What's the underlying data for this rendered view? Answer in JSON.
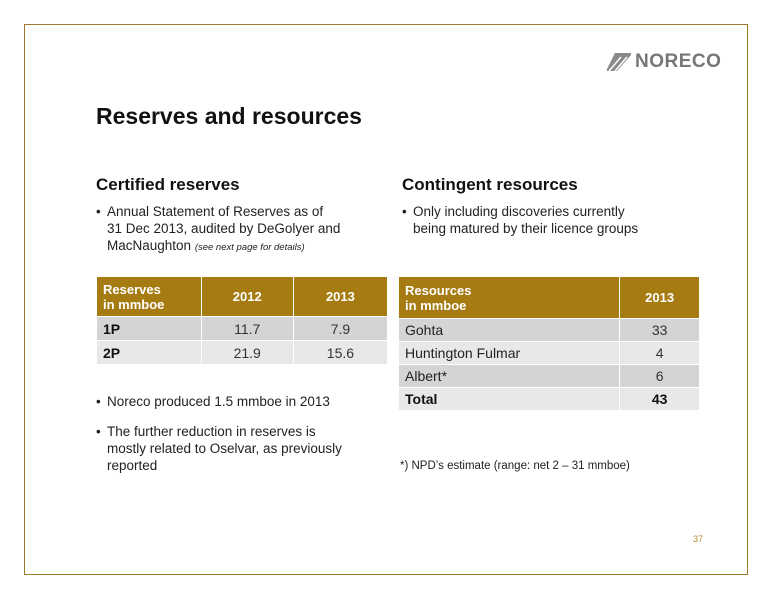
{
  "logo": {
    "text": "NORECO",
    "icon": "noreco-stripes-logo"
  },
  "title": "Reserves and resources",
  "left": {
    "heading": "Certified reserves",
    "bullet1": {
      "line1": "Annual Statement of Reserves as of",
      "line2": "31 Dec 2013, audited by DeGolyer and",
      "line3": "MacNaughton ",
      "note": "(see next page for details)"
    },
    "table": {
      "header": {
        "col0_line1": "Reserves",
        "col0_line2": "in mmboe",
        "col1": "2012",
        "col2": "2013"
      },
      "rows": [
        {
          "label": "1P",
          "v2012": "11.7",
          "v2013": "7.9"
        },
        {
          "label": "2P",
          "v2012": "21.9",
          "v2013": "15.6"
        }
      ]
    },
    "bullet2": "Noreco produced 1.5 mmboe in 2013",
    "bullet3": {
      "line1": "The further reduction in reserves is",
      "line2": "mostly related to Oselvar, as previously",
      "line3": "reported"
    }
  },
  "right": {
    "heading": "Contingent resources",
    "bullet1": {
      "line1": "Only including discoveries currently",
      "line2": "being matured by their licence groups"
    },
    "table": {
      "header": {
        "col0_line1": "Resources",
        "col0_line2": "in mmboe",
        "col1": "2013"
      },
      "rows": [
        {
          "label": "Gohta",
          "value": "33"
        },
        {
          "label": "Huntington Fulmar",
          "value": "4"
        },
        {
          "label": "Albert*",
          "value": "6"
        }
      ],
      "total": {
        "label": "Total",
        "value": "43"
      }
    },
    "footnote": "*) NPD’s estimate (range: net 2 – 31 mmboe)"
  },
  "page_number": "37",
  "colors": {
    "accent": "#a57b12",
    "frame": "#9a7a2a",
    "row_dark": "#d4d4d4",
    "row_light": "#e8e8e8"
  }
}
